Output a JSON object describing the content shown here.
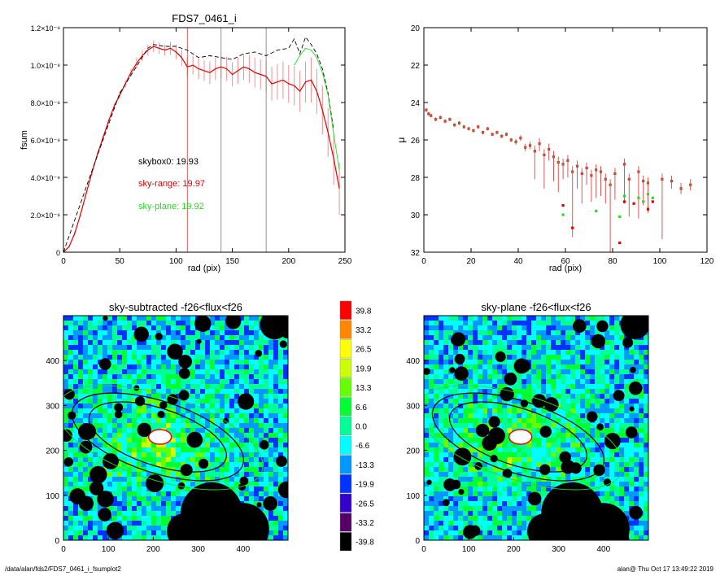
{
  "footer": {
    "path": "/data/alan/fds2/FDS7_0461_i_fsumplot2",
    "stamp": "alan@  Thu Oct 17 13:49:22 2019"
  },
  "chart_data": [
    {
      "type": "line",
      "title": "FDS7_0461_i",
      "xlabel": "rad (pix)",
      "ylabel": "fsum",
      "xlim": [
        0,
        250
      ],
      "ylim": [
        0,
        1.2e-08
      ],
      "xticks": [
        "0",
        "50",
        "100",
        "150",
        "200",
        "250"
      ],
      "yticks": [
        {
          "value": 0,
          "label": "0"
        },
        {
          "value": 2e-09,
          "label": "2.0×10⁻⁹"
        },
        {
          "value": 4e-09,
          "label": "4.0×10⁻⁹"
        },
        {
          "value": 6e-09,
          "label": "6.0×10⁻⁹"
        },
        {
          "value": 8e-09,
          "label": "8.0×10⁻⁹"
        },
        {
          "value": 1e-08,
          "label": "1.0×10⁻⁸"
        },
        {
          "value": 1.2e-08,
          "label": "1.2×10⁻⁸"
        }
      ],
      "annotations": [
        {
          "text": "skybox0: 19.93",
          "color": "#000000"
        },
        {
          "text": "sky-range: 19.97",
          "color": "#e00000"
        },
        {
          "text": "sky-plane: 19.92",
          "color": "#22dd22"
        }
      ],
      "vlines": [
        {
          "x": 110,
          "color": "#cc3333"
        },
        {
          "x": 140,
          "color": "#777777"
        },
        {
          "x": 180,
          "color": "#777777"
        }
      ],
      "series": [
        {
          "color": "#e00000",
          "x": [
            0,
            5,
            10,
            15,
            20,
            25,
            30,
            35,
            40,
            45,
            50,
            55,
            60,
            65,
            70,
            75,
            80,
            85,
            90,
            95,
            100,
            105,
            110,
            115,
            120,
            125,
            130,
            135,
            140,
            145,
            150,
            155,
            160,
            165,
            170,
            175,
            180,
            185,
            190,
            195,
            200,
            205,
            210,
            215,
            220,
            225,
            230,
            235,
            240,
            245
          ],
          "y": [
            0,
            3e-10,
            1e-09,
            2e-09,
            3.1e-09,
            4.2e-09,
            5.2e-09,
            6.1e-09,
            7e-09,
            7.8e-09,
            8.4e-09,
            9e-09,
            9.6e-09,
            1.01e-08,
            1.05e-08,
            1.08e-08,
            1.1e-08,
            1.09e-08,
            1.08e-08,
            1.09e-08,
            1.07e-08,
            1.04e-08,
            9.9e-09,
            1e-08,
            9.8e-09,
            9.7e-09,
            9.6e-09,
            9.8e-09,
            9.9e-09,
            9.8e-09,
            9.5e-09,
            9.7e-09,
            9.9e-09,
            9.8e-09,
            9.6e-09,
            9.5e-09,
            9.4e-09,
            9e-09,
            9.1e-09,
            9.2e-09,
            9e-09,
            8.9e-09,
            8.6e-09,
            9.1e-09,
            9.2e-09,
            8.6e-09,
            7.6e-09,
            6.4e-09,
            5e-09,
            3.4e-09
          ],
          "err": [
            0,
            5e-11,
            1e-10,
            1e-10,
            1e-10,
            1e-10,
            1e-10,
            1e-10,
            1e-10,
            1.5e-10,
            2e-10,
            2e-10,
            2e-10,
            3e-10,
            3e-10,
            3e-10,
            3e-10,
            3e-10,
            3e-10,
            3.5e-10,
            4e-10,
            4.5e-10,
            5e-10,
            5e-10,
            5.5e-10,
            5.5e-10,
            6e-10,
            6e-10,
            6e-10,
            6.5e-10,
            6.5e-10,
            7e-10,
            7e-10,
            7.5e-10,
            8e-10,
            8e-10,
            8.5e-10,
            9e-10,
            9.5e-10,
            1e-09,
            1e-09,
            1.05e-09,
            1.1e-09,
            1.1e-09,
            1.2e-09,
            1.2e-09,
            1.3e-09,
            1.3e-09,
            1.4e-09,
            1.4e-09
          ]
        },
        {
          "color": "#000000",
          "dash": true,
          "x": [
            0,
            25,
            50,
            75,
            80,
            90,
            100,
            110,
            120,
            130,
            140,
            150,
            160,
            170,
            180,
            190,
            200,
            205,
            210,
            215,
            220,
            225,
            230,
            235,
            240
          ],
          "y": [
            0,
            4.3e-09,
            8.5e-09,
            1.09e-08,
            1.11e-08,
            1.1e-08,
            1.1e-08,
            1.08e-08,
            1.04e-08,
            1.05e-08,
            1.04e-08,
            1.03e-08,
            1.06e-08,
            1.07e-08,
            1.05e-08,
            1.08e-08,
            1.09e-08,
            1.14e-08,
            1.06e-08,
            1.15e-08,
            1.11e-08,
            1.06e-08,
            9.8e-09,
            8.5e-09,
            6.5e-09
          ]
        },
        {
          "color": "#22dd22",
          "x": [
            205,
            210,
            215,
            220,
            225,
            230,
            235,
            240,
            245
          ],
          "y": [
            1e-08,
            1.05e-08,
            1.09e-08,
            1.08e-08,
            1.04e-08,
            9.6e-09,
            8.4e-09,
            6.3e-09,
            4.4e-09
          ]
        }
      ]
    },
    {
      "type": "scatter",
      "title": "",
      "xlabel": "rad (pix)",
      "ylabel": "μ",
      "xlim": [
        0,
        120
      ],
      "ylim": [
        32,
        20
      ],
      "xticks": [
        "0",
        "20",
        "40",
        "60",
        "80",
        "100",
        "120"
      ],
      "yticks": [
        "20",
        "22",
        "24",
        "26",
        "28",
        "30",
        "32"
      ],
      "series": [
        {
          "color": "#cc3333",
          "x": [
            1,
            2,
            3,
            5,
            7,
            9,
            11,
            13,
            15,
            17,
            19,
            21,
            23,
            25,
            27,
            29,
            31,
            33,
            35,
            37,
            39,
            41,
            43,
            45,
            47,
            49,
            51,
            53,
            55,
            57,
            59,
            61,
            63,
            65,
            67,
            69,
            71,
            73,
            75,
            77,
            79,
            81,
            85,
            87,
            91,
            93,
            95,
            101,
            105,
            109,
            113
          ],
          "y": [
            24.4,
            24.6,
            24.7,
            24.9,
            24.8,
            25.0,
            24.9,
            25.2,
            25.1,
            25.3,
            25.4,
            25.5,
            25.3,
            25.6,
            25.4,
            25.7,
            25.6,
            25.8,
            25.7,
            26.0,
            26.1,
            25.9,
            26.4,
            26.3,
            26.6,
            26.2,
            26.8,
            26.5,
            26.9,
            27.2,
            27.3,
            27.1,
            27.7,
            27.4,
            27.8,
            27.5,
            27.9,
            27.6,
            27.7,
            28.1,
            28.4,
            27.8,
            27.3,
            28.1,
            27.7,
            28.2,
            28.3,
            28.1,
            28.2,
            28.6,
            28.4
          ],
          "err": [
            0.1,
            0.1,
            0.1,
            0.1,
            0.1,
            0.1,
            0.1,
            0.1,
            0.1,
            0.1,
            0.1,
            0.1,
            0.1,
            0.1,
            0.1,
            0.1,
            0.1,
            0.1,
            0.1,
            0.1,
            0.15,
            0.15,
            0.2,
            0.2,
            1.5,
            0.4,
            1.8,
            0.6,
            1.3,
            1.6,
            0.8,
            0.9,
            3.5,
            1.2,
            1.6,
            0.9,
            1.4,
            1.5,
            1.3,
            1.3,
            4.0,
            1.4,
            2.1,
            2.0,
            2.5,
            1.3,
            1.6,
            3.2,
            0.4,
            0.3,
            0.3
          ]
        },
        {
          "color": "#22dd22",
          "x": [
            59,
            73,
            83,
            85,
            91,
            93,
            95,
            97
          ],
          "y": [
            30.0,
            29.8,
            30.1,
            29.0,
            29.1,
            29.3,
            28.9,
            29.1
          ]
        },
        {
          "color": "#e00000",
          "x": [
            59,
            63,
            83,
            85,
            89,
            95,
            97
          ],
          "y": [
            29.5,
            30.7,
            31.5,
            29.3,
            29.4,
            29.7,
            29.3
          ]
        }
      ]
    },
    {
      "type": "heatmap",
      "title": "sky-subtracted -f26<flux<f26",
      "xlim": [
        0,
        500
      ],
      "ylim": [
        0,
        500
      ],
      "xticks": [
        "0",
        "100",
        "200",
        "300",
        "400"
      ],
      "yticks": [
        "0",
        "100",
        "200",
        "300",
        "400"
      ]
    },
    {
      "type": "heatmap",
      "title": "sky-plane -f26<flux<f26",
      "xlim": [
        0,
        500
      ],
      "ylim": [
        0,
        500
      ],
      "xticks": [
        "0",
        "100",
        "200",
        "300",
        "400"
      ],
      "yticks": [
        "0",
        "100",
        "200",
        "300",
        "400"
      ]
    }
  ],
  "colorbar": {
    "labels": [
      "39.8",
      "33.2",
      "26.5",
      "19.9",
      "13.3",
      "6.6",
      "0.0",
      "-6.6",
      "-13.3",
      "-19.9",
      "-26.5",
      "-33.2",
      "-39.8"
    ],
    "colors": [
      "#ff0000",
      "#ff8800",
      "#ffff00",
      "#ccff00",
      "#66ff00",
      "#00ff33",
      "#00ff99",
      "#00ffff",
      "#0099ff",
      "#0033ff",
      "#3300cc",
      "#550066",
      "#000000"
    ]
  }
}
